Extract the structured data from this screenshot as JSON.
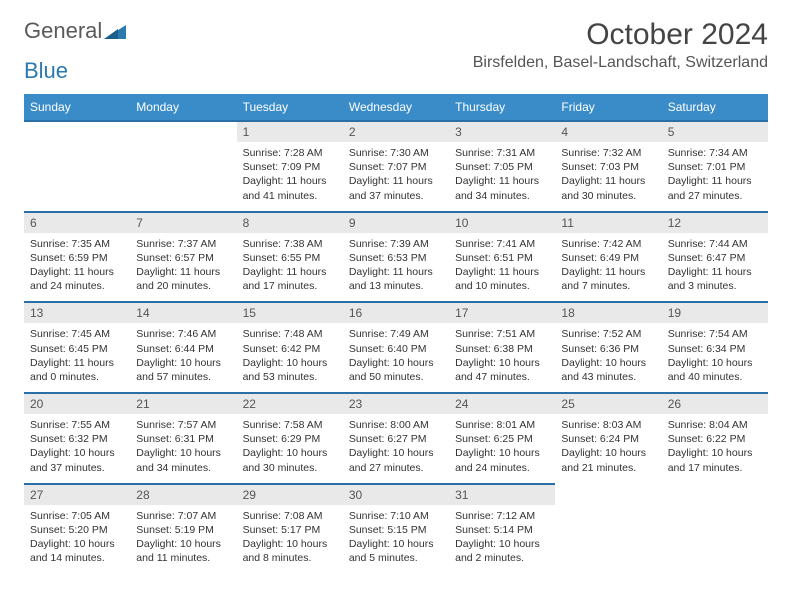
{
  "brand": {
    "part1": "General",
    "part2": "Blue"
  },
  "title": "October 2024",
  "location": "Birsfelden, Basel-Landschaft, Switzerland",
  "day_headers": [
    "Sunday",
    "Monday",
    "Tuesday",
    "Wednesday",
    "Thursday",
    "Friday",
    "Saturday"
  ],
  "colors": {
    "header_bg": "#3a8cc9",
    "header_text": "#ffffff",
    "daynum_bg": "#e9e9e9",
    "border_top": "#2a6fa5",
    "text": "#333333",
    "title_text": "#444444",
    "logo_gray": "#5a5a5a",
    "logo_blue": "#2a7ab0"
  },
  "grid": [
    [
      null,
      null,
      {
        "n": "1",
        "sunrise": "Sunrise: 7:28 AM",
        "sunset": "Sunset: 7:09 PM",
        "day1": "Daylight: 11 hours",
        "day2": "and 41 minutes."
      },
      {
        "n": "2",
        "sunrise": "Sunrise: 7:30 AM",
        "sunset": "Sunset: 7:07 PM",
        "day1": "Daylight: 11 hours",
        "day2": "and 37 minutes."
      },
      {
        "n": "3",
        "sunrise": "Sunrise: 7:31 AM",
        "sunset": "Sunset: 7:05 PM",
        "day1": "Daylight: 11 hours",
        "day2": "and 34 minutes."
      },
      {
        "n": "4",
        "sunrise": "Sunrise: 7:32 AM",
        "sunset": "Sunset: 7:03 PM",
        "day1": "Daylight: 11 hours",
        "day2": "and 30 minutes."
      },
      {
        "n": "5",
        "sunrise": "Sunrise: 7:34 AM",
        "sunset": "Sunset: 7:01 PM",
        "day1": "Daylight: 11 hours",
        "day2": "and 27 minutes."
      }
    ],
    [
      {
        "n": "6",
        "sunrise": "Sunrise: 7:35 AM",
        "sunset": "Sunset: 6:59 PM",
        "day1": "Daylight: 11 hours",
        "day2": "and 24 minutes."
      },
      {
        "n": "7",
        "sunrise": "Sunrise: 7:37 AM",
        "sunset": "Sunset: 6:57 PM",
        "day1": "Daylight: 11 hours",
        "day2": "and 20 minutes."
      },
      {
        "n": "8",
        "sunrise": "Sunrise: 7:38 AM",
        "sunset": "Sunset: 6:55 PM",
        "day1": "Daylight: 11 hours",
        "day2": "and 17 minutes."
      },
      {
        "n": "9",
        "sunrise": "Sunrise: 7:39 AM",
        "sunset": "Sunset: 6:53 PM",
        "day1": "Daylight: 11 hours",
        "day2": "and 13 minutes."
      },
      {
        "n": "10",
        "sunrise": "Sunrise: 7:41 AM",
        "sunset": "Sunset: 6:51 PM",
        "day1": "Daylight: 11 hours",
        "day2": "and 10 minutes."
      },
      {
        "n": "11",
        "sunrise": "Sunrise: 7:42 AM",
        "sunset": "Sunset: 6:49 PM",
        "day1": "Daylight: 11 hours",
        "day2": "and 7 minutes."
      },
      {
        "n": "12",
        "sunrise": "Sunrise: 7:44 AM",
        "sunset": "Sunset: 6:47 PM",
        "day1": "Daylight: 11 hours",
        "day2": "and 3 minutes."
      }
    ],
    [
      {
        "n": "13",
        "sunrise": "Sunrise: 7:45 AM",
        "sunset": "Sunset: 6:45 PM",
        "day1": "Daylight: 11 hours",
        "day2": "and 0 minutes."
      },
      {
        "n": "14",
        "sunrise": "Sunrise: 7:46 AM",
        "sunset": "Sunset: 6:44 PM",
        "day1": "Daylight: 10 hours",
        "day2": "and 57 minutes."
      },
      {
        "n": "15",
        "sunrise": "Sunrise: 7:48 AM",
        "sunset": "Sunset: 6:42 PM",
        "day1": "Daylight: 10 hours",
        "day2": "and 53 minutes."
      },
      {
        "n": "16",
        "sunrise": "Sunrise: 7:49 AM",
        "sunset": "Sunset: 6:40 PM",
        "day1": "Daylight: 10 hours",
        "day2": "and 50 minutes."
      },
      {
        "n": "17",
        "sunrise": "Sunrise: 7:51 AM",
        "sunset": "Sunset: 6:38 PM",
        "day1": "Daylight: 10 hours",
        "day2": "and 47 minutes."
      },
      {
        "n": "18",
        "sunrise": "Sunrise: 7:52 AM",
        "sunset": "Sunset: 6:36 PM",
        "day1": "Daylight: 10 hours",
        "day2": "and 43 minutes."
      },
      {
        "n": "19",
        "sunrise": "Sunrise: 7:54 AM",
        "sunset": "Sunset: 6:34 PM",
        "day1": "Daylight: 10 hours",
        "day2": "and 40 minutes."
      }
    ],
    [
      {
        "n": "20",
        "sunrise": "Sunrise: 7:55 AM",
        "sunset": "Sunset: 6:32 PM",
        "day1": "Daylight: 10 hours",
        "day2": "and 37 minutes."
      },
      {
        "n": "21",
        "sunrise": "Sunrise: 7:57 AM",
        "sunset": "Sunset: 6:31 PM",
        "day1": "Daylight: 10 hours",
        "day2": "and 34 minutes."
      },
      {
        "n": "22",
        "sunrise": "Sunrise: 7:58 AM",
        "sunset": "Sunset: 6:29 PM",
        "day1": "Daylight: 10 hours",
        "day2": "and 30 minutes."
      },
      {
        "n": "23",
        "sunrise": "Sunrise: 8:00 AM",
        "sunset": "Sunset: 6:27 PM",
        "day1": "Daylight: 10 hours",
        "day2": "and 27 minutes."
      },
      {
        "n": "24",
        "sunrise": "Sunrise: 8:01 AM",
        "sunset": "Sunset: 6:25 PM",
        "day1": "Daylight: 10 hours",
        "day2": "and 24 minutes."
      },
      {
        "n": "25",
        "sunrise": "Sunrise: 8:03 AM",
        "sunset": "Sunset: 6:24 PM",
        "day1": "Daylight: 10 hours",
        "day2": "and 21 minutes."
      },
      {
        "n": "26",
        "sunrise": "Sunrise: 8:04 AM",
        "sunset": "Sunset: 6:22 PM",
        "day1": "Daylight: 10 hours",
        "day2": "and 17 minutes."
      }
    ],
    [
      {
        "n": "27",
        "sunrise": "Sunrise: 7:05 AM",
        "sunset": "Sunset: 5:20 PM",
        "day1": "Daylight: 10 hours",
        "day2": "and 14 minutes."
      },
      {
        "n": "28",
        "sunrise": "Sunrise: 7:07 AM",
        "sunset": "Sunset: 5:19 PM",
        "day1": "Daylight: 10 hours",
        "day2": "and 11 minutes."
      },
      {
        "n": "29",
        "sunrise": "Sunrise: 7:08 AM",
        "sunset": "Sunset: 5:17 PM",
        "day1": "Daylight: 10 hours",
        "day2": "and 8 minutes."
      },
      {
        "n": "30",
        "sunrise": "Sunrise: 7:10 AM",
        "sunset": "Sunset: 5:15 PM",
        "day1": "Daylight: 10 hours",
        "day2": "and 5 minutes."
      },
      {
        "n": "31",
        "sunrise": "Sunrise: 7:12 AM",
        "sunset": "Sunset: 5:14 PM",
        "day1": "Daylight: 10 hours",
        "day2": "and 2 minutes."
      },
      null,
      null
    ]
  ]
}
